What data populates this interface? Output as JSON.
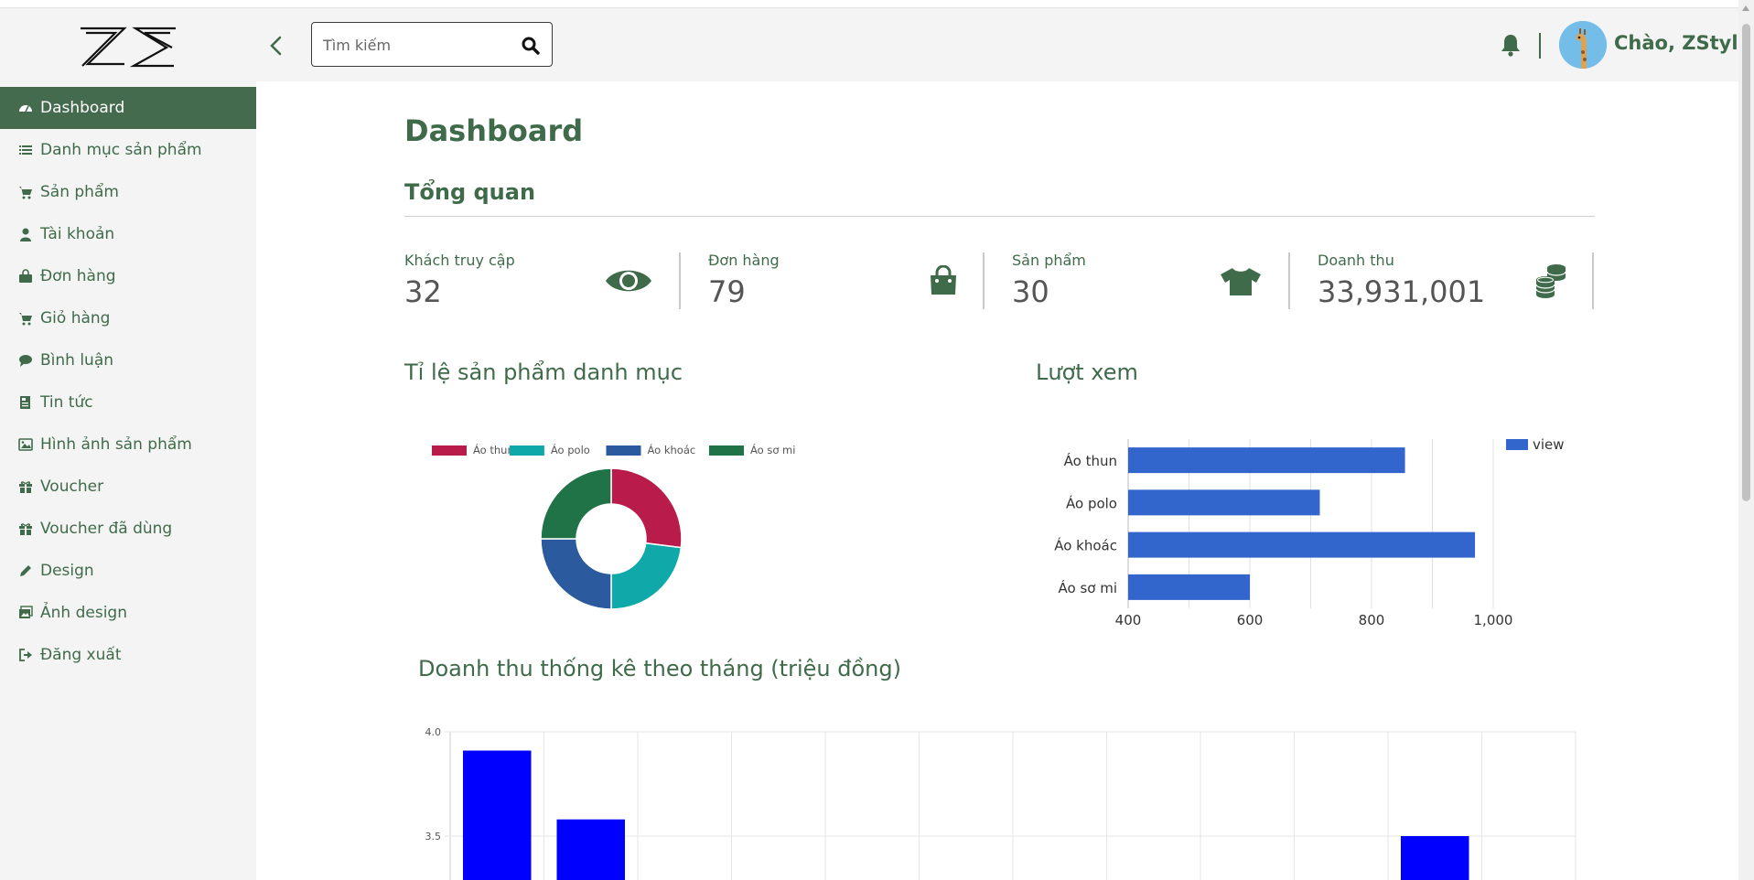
{
  "header": {
    "search_placeholder": "Tìm kiếm",
    "greeting": "Chào, ZStyle"
  },
  "sidebar": {
    "items": [
      {
        "label": "Dashboard",
        "icon": "dashboard-icon",
        "active": true
      },
      {
        "label": "Danh mục sản phẩm",
        "icon": "list-icon"
      },
      {
        "label": "Sản phẩm",
        "icon": "cart-icon"
      },
      {
        "label": "Tài khoản",
        "icon": "user-icon"
      },
      {
        "label": "Đơn hàng",
        "icon": "bag-icon"
      },
      {
        "label": "Giỏ hàng",
        "icon": "cart-icon"
      },
      {
        "label": "Bình luận",
        "icon": "comment-icon"
      },
      {
        "label": "Tin tức",
        "icon": "news-icon"
      },
      {
        "label": "Hình ảnh sản phẩm",
        "icon": "image-icon"
      },
      {
        "label": "Voucher",
        "icon": "gift-icon"
      },
      {
        "label": "Voucher đã dùng",
        "icon": "gift-icon"
      },
      {
        "label": "Design",
        "icon": "pencil-icon"
      },
      {
        "label": "Ảnh design",
        "icon": "images-icon"
      },
      {
        "label": "Đăng xuất",
        "icon": "logout-icon"
      }
    ]
  },
  "main": {
    "title": "Dashboard",
    "overview_title": "Tổng quan",
    "stats": [
      {
        "label": "Khách truy cập",
        "value": "32",
        "icon": "eye-icon"
      },
      {
        "label": "Đơn hàng",
        "value": "79",
        "icon": "shopping-bag-icon"
      },
      {
        "label": "Sản phẩm",
        "value": "30",
        "icon": "tshirt-icon"
      },
      {
        "label": "Doanh thu",
        "value": "33,931,001",
        "icon": "coins-icon"
      }
    ]
  },
  "colors": {
    "primary": "#3f6b4a",
    "active_nav": "#456b4f",
    "sidebar_bg": "#f4f4f4",
    "donut": [
      "#b91c4a",
      "#0fa9a9",
      "#2b5a9e",
      "#1f7346"
    ],
    "views_bar": "#3366cc",
    "revenue_bar": "#0000ff"
  },
  "chart_data": [
    {
      "type": "pie",
      "title": "Tỉ lệ sản phẩm danh mục",
      "labels": [
        "Áo thun",
        "Áo polo",
        "Áo khoác",
        "Áo sơ mi"
      ],
      "values": [
        27,
        23,
        25,
        25
      ],
      "legend": "top"
    },
    {
      "type": "bar",
      "orientation": "horizontal",
      "title": "Lượt xem",
      "categories": [
        "Áo thun",
        "Áo polo",
        "Áo khoác",
        "Áo sơ mi"
      ],
      "series": [
        {
          "name": "view",
          "values": [
            855,
            715,
            970,
            600
          ]
        }
      ],
      "xlim": [
        400,
        1000
      ],
      "xticks": [
        "400",
        "600",
        "800",
        "1,000"
      ],
      "legend": "right",
      "grid": true
    },
    {
      "type": "bar",
      "title": "Doanh thu thống kê theo tháng (triệu đồng)",
      "values_visible": [
        3.91,
        3.58,
        null,
        null,
        null,
        null,
        null,
        null,
        null,
        null,
        3.5,
        null
      ],
      "yticks": [
        "4.0",
        "3.5"
      ],
      "grid": true
    }
  ]
}
